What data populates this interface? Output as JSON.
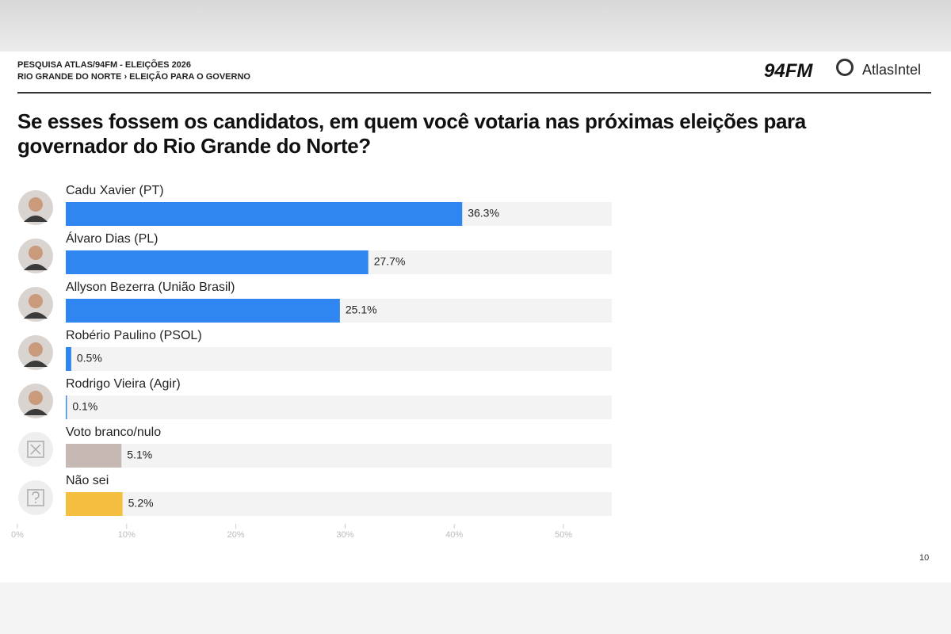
{
  "header": {
    "line1": "PESQUISA ATLAS/94FM - ELEIÇÕES 2026",
    "line2": "RIO GRANDE DO NORTE › ELEIÇÃO PARA O GOVERNO",
    "logo1": "94FM",
    "logo2": "AtlasIntel"
  },
  "chart_data": {
    "type": "bar",
    "orientation": "horizontal",
    "title": "Se esses fossem os candidatos, em quem você votaria nas próximas eleições para governador do Rio Grande do Norte?",
    "categories": [
      "Cadu Xavier (PT)",
      "Álvaro Dias (PL)",
      "Allyson Bezerra (União Brasil)",
      "Robério Paulino (PSOL)",
      "Rodrigo Vieira (Agir)",
      "Voto branco/nulo",
      "Não sei"
    ],
    "values": [
      36.3,
      27.7,
      25.1,
      0.5,
      0.1,
      5.1,
      5.2
    ],
    "value_labels": [
      "36.3%",
      "27.7%",
      "25.1%",
      "0.5%",
      "0.1%",
      "5.1%",
      "5.2%"
    ],
    "colors": [
      "#2f86f0",
      "#2f86f0",
      "#2f86f0",
      "#2f86f0",
      "#2f86f0",
      "#c6b9b3",
      "#f4bf3e"
    ],
    "xlim": [
      0,
      50
    ],
    "xticks": [
      {
        "value": 0,
        "label": "0%"
      },
      {
        "value": 10,
        "label": "10%"
      },
      {
        "value": 20,
        "label": "20%"
      },
      {
        "value": 30,
        "label": "30%"
      },
      {
        "value": 40,
        "label": "40%"
      },
      {
        "value": 50,
        "label": "50%"
      }
    ]
  },
  "page_number": "10"
}
